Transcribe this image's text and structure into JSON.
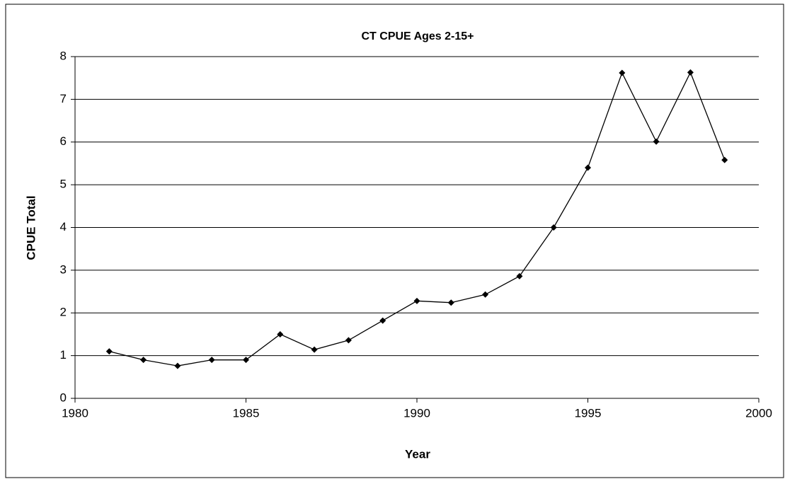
{
  "chart_data": {
    "type": "line",
    "title": "CT CPUE Ages 2-15+",
    "x_label": "Year",
    "y_label": "CPUE Total",
    "x": [
      1981,
      1982,
      1983,
      1984,
      1985,
      1986,
      1987,
      1988,
      1989,
      1990,
      1991,
      1992,
      1993,
      1994,
      1995,
      1996,
      1997,
      1998,
      1999
    ],
    "series": [
      {
        "name": "CPUE Total",
        "color": "#000000",
        "values": [
          1.1,
          0.9,
          0.76,
          0.9,
          0.9,
          1.5,
          1.14,
          1.36,
          1.82,
          2.28,
          2.24,
          2.43,
          2.86,
          4.0,
          5.4,
          7.62,
          6.01,
          7.63,
          5.58
        ]
      }
    ],
    "xlim": [
      1980,
      2000
    ],
    "xticks": [
      1980,
      1985,
      1990,
      1995,
      2000
    ],
    "ylim": [
      0,
      8
    ],
    "yticks": [
      0,
      1,
      2,
      3,
      4,
      5,
      6,
      7,
      8
    ],
    "grid": true
  }
}
